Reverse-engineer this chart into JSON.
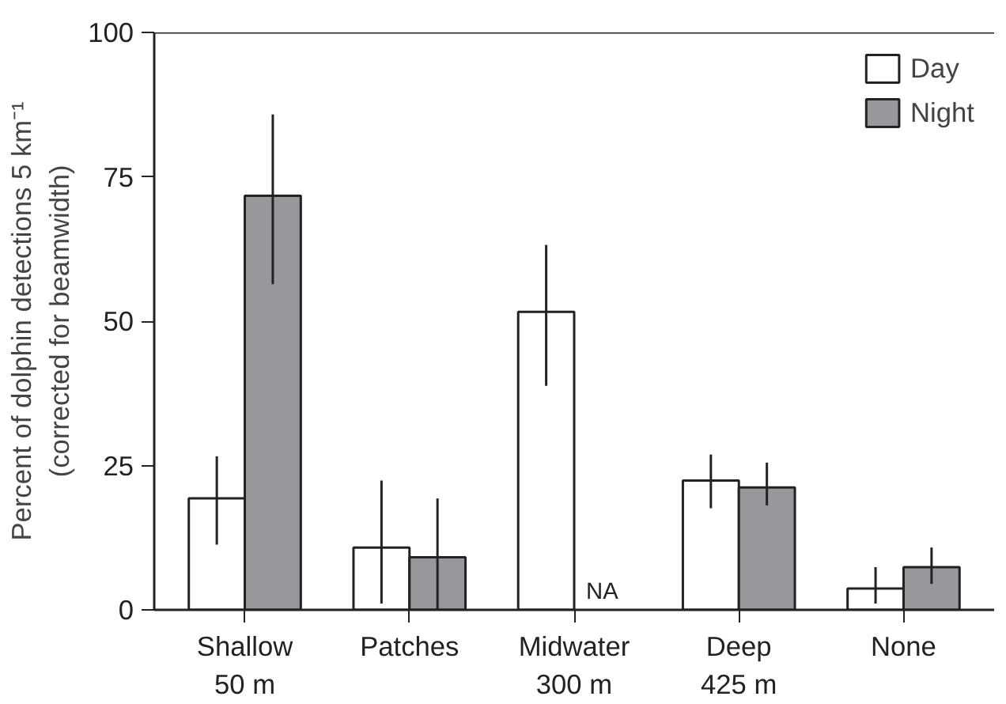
{
  "chart_data": {
    "type": "bar",
    "ylabel": "Percent of dolphin detections 5 km⁻¹\n(corrected for beamwidth)",
    "categories": [
      "Shallow\n50 m",
      "Patches",
      "Midwater\n300 m",
      "Deep\n425 m",
      "None"
    ],
    "series": [
      {
        "name": "Day",
        "color": "#ffffff",
        "values": [
          19.3,
          10.8,
          51.6,
          22.4,
          3.7
        ],
        "errors": [
          [
            11.3,
            26.6
          ],
          [
            1.1,
            22.4
          ],
          [
            38.8,
            63.2
          ],
          [
            17.6,
            26.9
          ],
          [
            1.1,
            7.4
          ]
        ]
      },
      {
        "name": "Night",
        "color": "#98979c",
        "values": [
          71.7,
          9.1,
          null,
          21.2,
          7.4
        ],
        "errors": [
          [
            56.4,
            85.8
          ],
          [
            0,
            19.3
          ],
          null,
          [
            18.1,
            25.5
          ],
          [
            4.5,
            10.8
          ]
        ]
      }
    ],
    "ylim": [
      0,
      100
    ],
    "yticks": [
      0,
      25,
      50,
      75,
      100
    ],
    "grid": false,
    "legend": "top right",
    "annotations": [
      {
        "text": "NA",
        "x": "Midwater\n300 m",
        "y": 0
      }
    ]
  }
}
